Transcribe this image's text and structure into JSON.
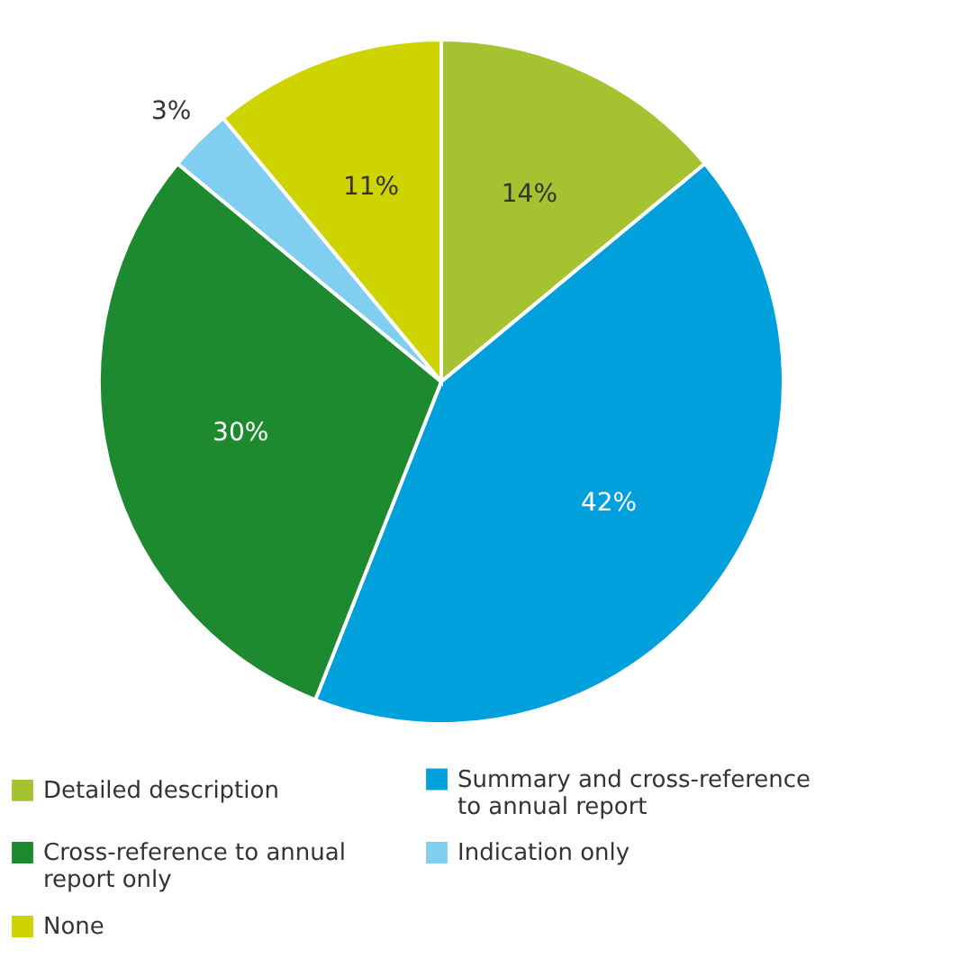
{
  "chart_data": {
    "type": "pie",
    "categories": [
      "Detailed description",
      "Summary and cross-reference to annual report",
      "Cross-reference to annual report only",
      "Indication only",
      "None"
    ],
    "values": [
      14,
      42,
      30,
      3,
      11
    ],
    "colors": [
      "#a5c330",
      "#00a0dc",
      "#1d8a2f",
      "#80cff0",
      "#cdd400"
    ],
    "value_labels": [
      "14%",
      "42%",
      "30%",
      "3%",
      "11%"
    ],
    "legend": "bottom"
  }
}
